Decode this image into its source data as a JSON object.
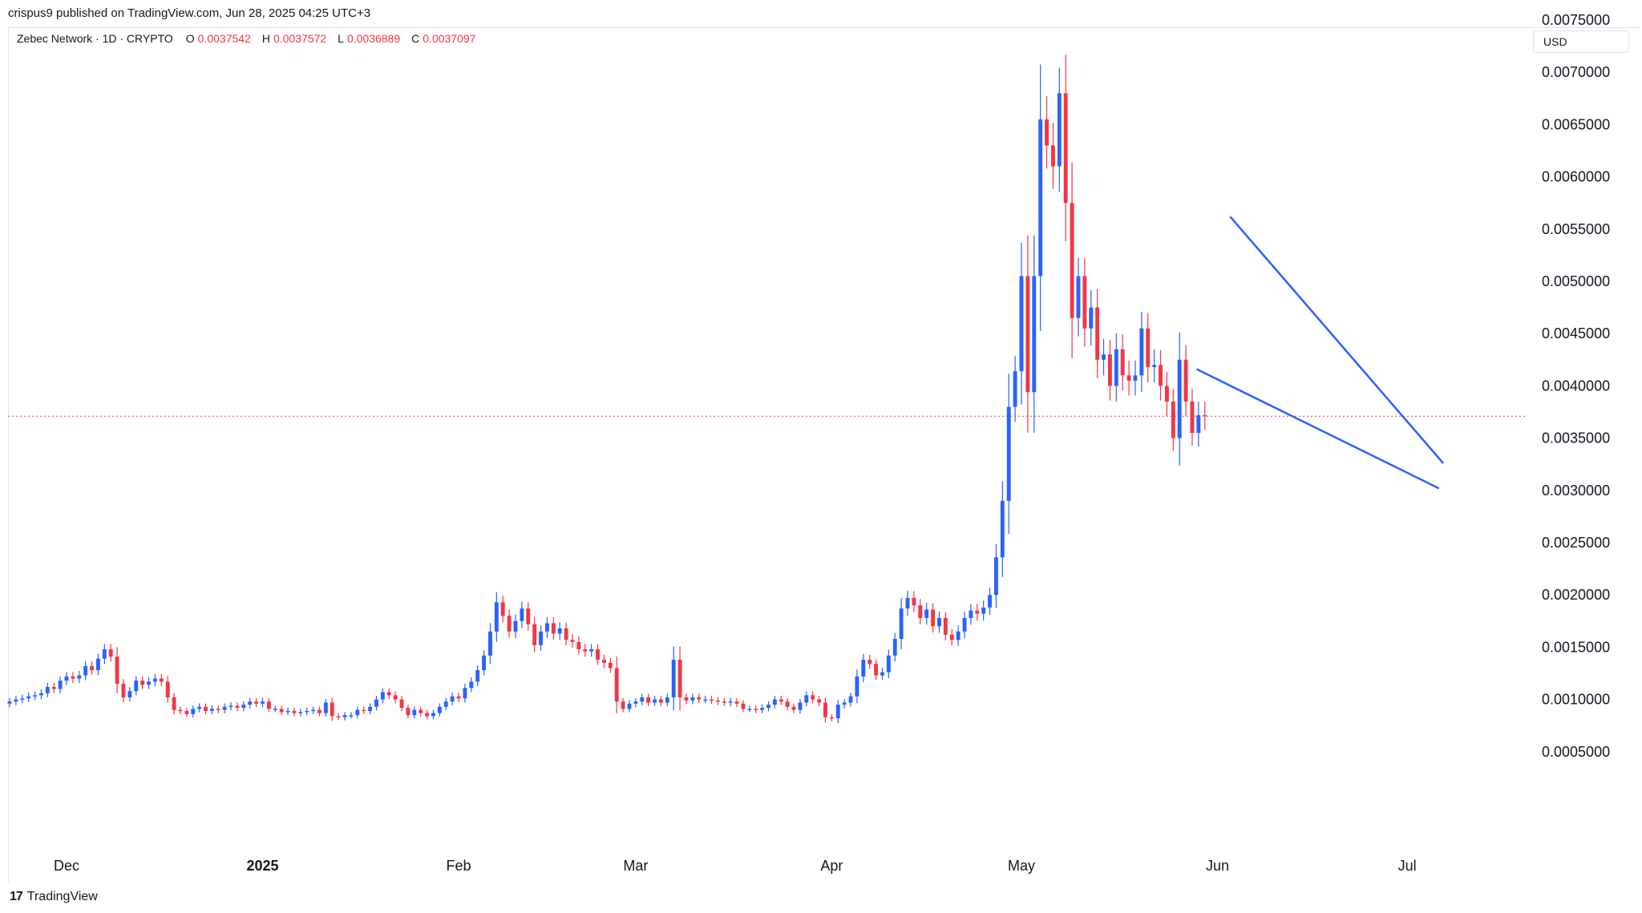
{
  "header": {
    "publisher": "crispus9 published on TradingView.com, Jun 28, 2025 04:25 UTC+3"
  },
  "legend": {
    "symbol": "Zebec Network · 1D · CRYPTO",
    "o_label": "O",
    "o": "0.0037542",
    "h_label": "H",
    "h": "0.0037572",
    "l_label": "L",
    "l": "0.0036889",
    "c_label": "C",
    "c": "0.0037097"
  },
  "currency_button": "USD",
  "footer": {
    "brand": "TradingView"
  },
  "colors": {
    "up": "#2962ff",
    "down": "#f23645",
    "trendline": "#2962ff",
    "last_price_line": "#f23645"
  },
  "chart_data": {
    "type": "candlestick",
    "yaxis": {
      "ticks": [
        "0.0075000",
        "0.0070000",
        "0.0065000",
        "0.0060000",
        "0.0055000",
        "0.0050000",
        "0.0045000",
        "0.0040000",
        "0.0035000",
        "0.0030000",
        "0.0025000",
        "0.0020000",
        "0.0015000",
        "0.0010000",
        "0.0005000"
      ],
      "ylim": [
        0.0001,
        0.0078
      ]
    },
    "xaxis": {
      "ticks": [
        {
          "label": "Dec",
          "date": "2024-12-01",
          "bold": false
        },
        {
          "label": "2025",
          "date": "2025-01-01",
          "bold": true
        },
        {
          "label": "Feb",
          "date": "2025-02-01",
          "bold": false
        },
        {
          "label": "Mar",
          "date": "2025-03-01",
          "bold": false
        },
        {
          "label": "Apr",
          "date": "2025-04-01",
          "bold": false
        },
        {
          "label": "May",
          "date": "2025-05-01",
          "bold": false
        },
        {
          "label": "Jun",
          "date": "2025-06-01",
          "bold": false
        },
        {
          "label": "Jul",
          "date": "2025-07-01",
          "bold": false
        }
      ],
      "start_date": "2024-11-22",
      "end_date": "2025-07-20"
    },
    "last_price": 0.0037097,
    "candle_closes": [
      0.00098,
      0.001,
      0.00101,
      0.00103,
      0.00104,
      0.00106,
      0.00112,
      0.0011,
      0.00118,
      0.00122,
      0.0012,
      0.00123,
      0.00132,
      0.00128,
      0.00139,
      0.00148,
      0.00141,
      0.00115,
      0.00102,
      0.00108,
      0.00118,
      0.00114,
      0.00117,
      0.0012,
      0.00117,
      0.00102,
      0.0009,
      0.00089,
      0.00086,
      0.00091,
      0.00093,
      0.00089,
      0.00091,
      0.0009,
      0.00093,
      0.00094,
      0.00092,
      0.00095,
      0.00098,
      0.00096,
      0.00098,
      0.00091,
      0.00091,
      0.00088,
      0.00089,
      0.00087,
      0.00088,
      0.00089,
      0.0009,
      0.00087,
      0.00097,
      0.00084,
      0.00083,
      0.00085,
      0.00085,
      0.0009,
      0.00089,
      0.00093,
      0.001,
      0.00107,
      0.00104,
      0.001,
      0.00092,
      0.00085,
      0.0009,
      0.00087,
      0.00084,
      0.00087,
      0.00093,
      0.00098,
      0.00103,
      0.00101,
      0.00111,
      0.00117,
      0.00128,
      0.00142,
      0.00165,
      0.00193,
      0.0018,
      0.00165,
      0.00175,
      0.00187,
      0.00172,
      0.00152,
      0.00165,
      0.00173,
      0.00163,
      0.00168,
      0.00157,
      0.00155,
      0.00148,
      0.00146,
      0.00148,
      0.00138,
      0.00135,
      0.0013,
      0.00098,
      0.00091,
      0.00096,
      0.00098,
      0.00102,
      0.00097,
      0.001,
      0.00097,
      0.00102,
      0.00138,
      0.00102,
      0.00099,
      0.00102,
      0.001,
      0.001,
      0.00099,
      0.00098,
      0.00097,
      0.00098,
      0.00096,
      0.00091,
      0.00091,
      0.0009,
      0.00092,
      0.00095,
      0.001,
      0.00098,
      0.00093,
      0.0009,
      0.00097,
      0.00104,
      0.001,
      0.00097,
      0.00083,
      0.00082,
      0.00095,
      0.00097,
      0.00103,
      0.00122,
      0.00138,
      0.00134,
      0.00123,
      0.00126,
      0.00142,
      0.00158,
      0.00187,
      0.00197,
      0.0019,
      0.00178,
      0.00186,
      0.0017,
      0.00178,
      0.00162,
      0.00157,
      0.00165,
      0.00178,
      0.00185,
      0.00182,
      0.00188,
      0.002,
      0.00236,
      0.0029,
      0.0038,
      0.00414,
      0.00505,
      0.00394,
      0.00505,
      0.00655,
      0.0063,
      0.0061,
      0.0068,
      0.00575,
      0.00465,
      0.00505,
      0.00455,
      0.00475,
      0.00425,
      0.0043,
      0.004,
      0.00435,
      0.0041,
      0.00405,
      0.0041,
      0.00455,
      0.00418,
      0.0042,
      0.004,
      0.00385,
      0.0035,
      0.00425,
      0.00385,
      0.00355,
      0.00372,
      0.00371
    ]
  }
}
